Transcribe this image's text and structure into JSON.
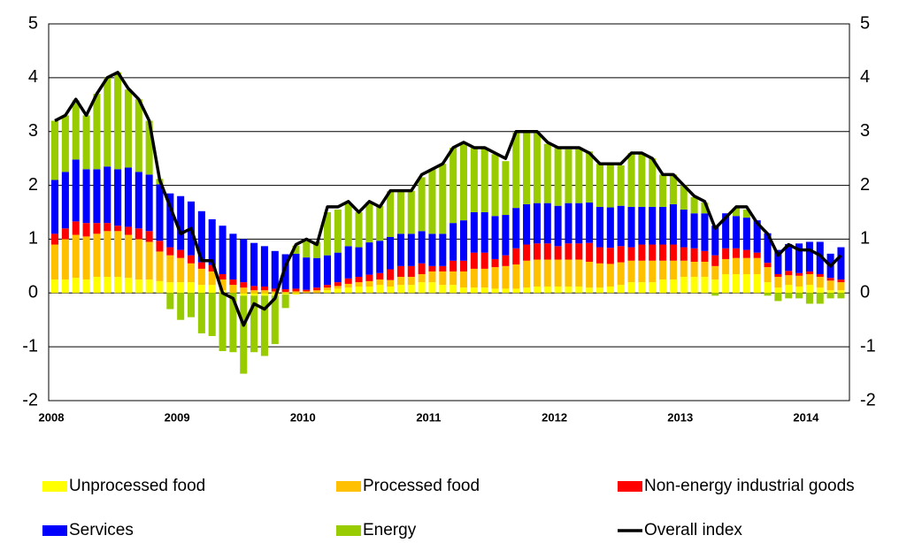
{
  "chart_data": {
    "type": "bar",
    "categories": [
      "2008",
      null,
      null,
      null,
      null,
      null,
      null,
      null,
      null,
      null,
      null,
      null,
      "2009",
      null,
      null,
      null,
      null,
      null,
      null,
      null,
      null,
      null,
      null,
      null,
      "2010",
      null,
      null,
      null,
      null,
      null,
      null,
      null,
      null,
      null,
      null,
      null,
      "2011",
      null,
      null,
      null,
      null,
      null,
      null,
      null,
      null,
      null,
      null,
      null,
      "2012",
      null,
      null,
      null,
      null,
      null,
      null,
      null,
      null,
      null,
      null,
      null,
      "2013",
      null,
      null,
      null,
      null,
      null,
      null,
      null,
      null,
      null,
      null,
      null,
      "2014",
      null,
      null,
      null
    ],
    "series": [
      {
        "name": "Unprocessed food",
        "color": "#ffff00",
        "values": [
          0.25,
          0.25,
          0.28,
          0.25,
          0.3,
          0.3,
          0.3,
          0.28,
          0.25,
          0.25,
          0.22,
          0.2,
          0.2,
          0.2,
          0.15,
          0.15,
          0.05,
          0.0,
          -0.05,
          -0.05,
          -0.05,
          -0.05,
          -0.03,
          -0.03,
          0.0,
          0.0,
          0.05,
          0.08,
          0.1,
          0.12,
          0.12,
          0.15,
          0.12,
          0.15,
          0.15,
          0.2,
          0.2,
          0.15,
          0.15,
          0.1,
          0.1,
          0.1,
          0.08,
          0.08,
          0.08,
          0.1,
          0.12,
          0.12,
          0.12,
          0.12,
          0.12,
          0.1,
          0.1,
          0.12,
          0.15,
          0.2,
          0.2,
          0.2,
          0.25,
          0.25,
          0.3,
          0.3,
          0.3,
          0.25,
          0.35,
          0.35,
          0.35,
          0.35,
          0.2,
          0.1,
          0.15,
          0.12,
          0.15,
          0.1,
          0.05,
          0.05
        ]
      },
      {
        "name": "Processed food",
        "color": "#ffc000",
        "values": [
          0.65,
          0.75,
          0.8,
          0.8,
          0.8,
          0.85,
          0.85,
          0.8,
          0.75,
          0.7,
          0.55,
          0.5,
          0.45,
          0.35,
          0.3,
          0.25,
          0.2,
          0.15,
          0.1,
          0.05,
          0.05,
          0.03,
          0.02,
          0.03,
          0.03,
          0.05,
          0.05,
          0.05,
          0.07,
          0.08,
          0.1,
          0.1,
          0.12,
          0.15,
          0.15,
          0.15,
          0.2,
          0.25,
          0.25,
          0.3,
          0.35,
          0.35,
          0.4,
          0.42,
          0.45,
          0.5,
          0.5,
          0.5,
          0.5,
          0.5,
          0.5,
          0.48,
          0.45,
          0.42,
          0.42,
          0.4,
          0.4,
          0.4,
          0.35,
          0.35,
          0.3,
          0.28,
          0.28,
          0.25,
          0.28,
          0.3,
          0.3,
          0.3,
          0.28,
          0.2,
          0.18,
          0.2,
          0.2,
          0.2,
          0.18,
          0.15
        ]
      },
      {
        "name": "Non-energy industrial goods",
        "color": "#ff0000",
        "values": [
          0.2,
          0.2,
          0.25,
          0.25,
          0.2,
          0.15,
          0.1,
          0.15,
          0.2,
          0.2,
          0.2,
          0.15,
          0.15,
          0.15,
          0.12,
          0.12,
          0.1,
          0.1,
          0.1,
          0.08,
          0.07,
          0.05,
          0.05,
          0.05,
          0.03,
          0.05,
          0.05,
          0.07,
          0.1,
          0.1,
          0.12,
          0.12,
          0.2,
          0.2,
          0.2,
          0.2,
          0.1,
          0.1,
          0.2,
          0.2,
          0.3,
          0.3,
          0.15,
          0.2,
          0.3,
          0.3,
          0.3,
          0.3,
          0.25,
          0.3,
          0.3,
          0.35,
          0.3,
          0.3,
          0.3,
          0.25,
          0.3,
          0.3,
          0.3,
          0.3,
          0.25,
          0.25,
          0.2,
          0.2,
          0.2,
          0.18,
          0.15,
          0.1,
          0.08,
          0.05,
          0.08,
          0.05,
          0.05,
          0.05,
          0.05,
          0.05
        ]
      },
      {
        "name": "Services",
        "color": "#0000ff",
        "values": [
          1.0,
          1.05,
          1.15,
          1.0,
          1.0,
          1.05,
          1.05,
          1.1,
          1.05,
          1.05,
          1.05,
          1.0,
          1.0,
          1.0,
          0.95,
          0.85,
          0.9,
          0.85,
          0.8,
          0.8,
          0.75,
          0.7,
          0.65,
          0.65,
          0.6,
          0.55,
          0.55,
          0.55,
          0.6,
          0.55,
          0.6,
          0.6,
          0.6,
          0.6,
          0.6,
          0.6,
          0.6,
          0.6,
          0.7,
          0.75,
          0.75,
          0.75,
          0.8,
          0.75,
          0.75,
          0.75,
          0.75,
          0.75,
          0.75,
          0.75,
          0.75,
          0.75,
          0.75,
          0.75,
          0.75,
          0.75,
          0.7,
          0.7,
          0.7,
          0.75,
          0.7,
          0.65,
          0.7,
          0.55,
          0.65,
          0.6,
          0.6,
          0.6,
          0.55,
          0.45,
          0.5,
          0.55,
          0.55,
          0.6,
          0.45,
          0.6
        ]
      },
      {
        "name": "Energy",
        "color": "#99cc00",
        "values": [
          1.1,
          1.05,
          1.1,
          1.0,
          1.4,
          1.65,
          1.8,
          1.45,
          1.35,
          1.0,
          0.1,
          -0.3,
          -0.5,
          -0.45,
          -0.75,
          -0.8,
          -1.08,
          -1.1,
          -1.45,
          -1.05,
          -1.12,
          -0.9,
          -0.25,
          0.15,
          0.3,
          0.3,
          0.8,
          0.8,
          0.8,
          0.65,
          0.75,
          0.65,
          0.85,
          0.8,
          0.8,
          1.0,
          1.2,
          1.3,
          1.4,
          1.45,
          1.2,
          1.2,
          1.15,
          1.0,
          1.4,
          1.35,
          1.3,
          1.1,
          1.1,
          1.0,
          1.0,
          0.95,
          0.8,
          0.8,
          0.75,
          1.0,
          1.0,
          0.9,
          0.6,
          0.55,
          0.45,
          0.3,
          0.2,
          -0.05,
          0.0,
          0.15,
          0.15,
          0.0,
          -0.05,
          -0.15,
          -0.1,
          -0.1,
          -0.2,
          -0.2,
          -0.1,
          -0.1
        ]
      },
      {
        "name": "Overall index",
        "color": "#000000",
        "line": true,
        "values": [
          3.2,
          3.3,
          3.6,
          3.3,
          3.7,
          4.0,
          4.1,
          3.8,
          3.6,
          3.2,
          2.1,
          1.6,
          1.1,
          1.2,
          0.6,
          0.6,
          0.0,
          -0.1,
          -0.6,
          -0.2,
          -0.3,
          -0.1,
          0.5,
          0.9,
          1.0,
          0.9,
          1.6,
          1.6,
          1.7,
          1.5,
          1.7,
          1.6,
          1.9,
          1.9,
          1.9,
          2.2,
          2.3,
          2.4,
          2.7,
          2.8,
          2.7,
          2.7,
          2.6,
          2.5,
          3.0,
          3.0,
          3.0,
          2.8,
          2.7,
          2.7,
          2.7,
          2.6,
          2.4,
          2.4,
          2.4,
          2.6,
          2.6,
          2.5,
          2.2,
          2.2,
          2.0,
          1.8,
          1.7,
          1.2,
          1.4,
          1.6,
          1.6,
          1.3,
          1.1,
          0.7,
          0.9,
          0.8,
          0.8,
          0.7,
          0.5,
          0.7
        ]
      }
    ],
    "ylim": [
      -2,
      5
    ],
    "yticks": [
      -2,
      -1,
      0,
      1,
      2,
      3,
      4,
      5
    ],
    "grid": true
  }
}
